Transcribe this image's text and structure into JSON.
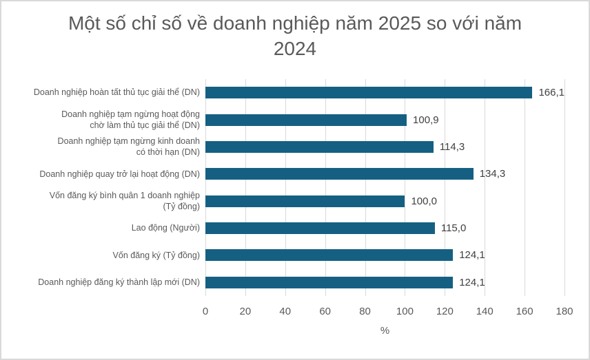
{
  "chart_data": {
    "type": "bar",
    "orientation": "horizontal",
    "title": "Một số chỉ số về doanh nghiệp năm 2025 so với năm 2024",
    "categories": [
      "Doanh nghiệp hoàn tất thủ tục giải thể (DN)",
      "Doanh nghiệp tạm ngừng hoạt động\nchờ làm thủ tục giải thể (DN)",
      "Doanh nghiệp tạm ngừng kinh doanh\ncó thời hạn (DN)",
      "Doanh nghiệp quay trở lại hoạt động (DN)",
      "Vốn đăng ký bình quân 1 doanh nghiệp\n(Tỷ đồng)",
      "Lao động (Người)",
      "Vốn đăng ký (Tỷ đồng)",
      "Doanh nghiệp đăng ký thành lập mới (DN)"
    ],
    "values": [
      166.1,
      100.9,
      114.3,
      134.3,
      100.0,
      115.0,
      124.1,
      124.1
    ],
    "value_labels": [
      "166,1",
      "100,9",
      "114,3",
      "134,3",
      "100,0",
      "115,0",
      "124,1",
      "124,1"
    ],
    "xlabel": "%",
    "xlim": [
      0,
      180
    ],
    "xticks": [
      0,
      20,
      40,
      60,
      80,
      100,
      120,
      140,
      160,
      180
    ],
    "grid": true,
    "legend": false,
    "bar_color": "#156082",
    "gridline_color": "#D9D9D9",
    "title_color": "#595959",
    "axis_label_color": "#595959",
    "data_label_color": "#404040"
  }
}
